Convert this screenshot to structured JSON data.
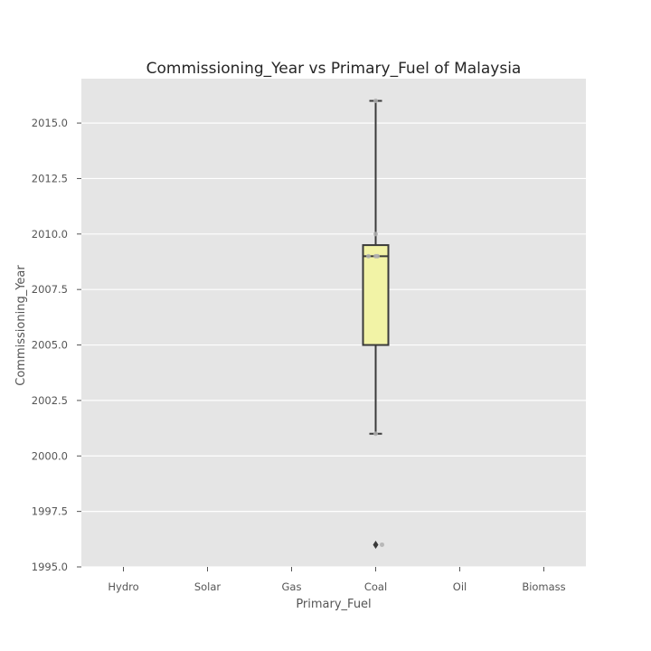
{
  "chart_data": {
    "type": "box",
    "title": "Commissioning_Year vs  Primary_Fuel of Malaysia",
    "xlabel": "Primary_Fuel",
    "ylabel": "Commissioning_Year",
    "categories": [
      "Hydro",
      "Solar",
      "Gas",
      "Coal",
      "Oil",
      "Biomass"
    ],
    "ylim": [
      1995.0,
      2017.0
    ],
    "yticks": [
      "1995.0",
      "1997.5",
      "2000.0",
      "2002.5",
      "2005.0",
      "2007.5",
      "2010.0",
      "2012.5",
      "2015.0"
    ],
    "grid": true,
    "boxes": [
      {
        "category": "Coal",
        "whisker_low": 2001,
        "q1": 2005,
        "median": 2009,
        "q3": 2009.5,
        "whisker_high": 2016,
        "outliers": [
          1996
        ],
        "points": [
          2016,
          2010,
          2009,
          2009,
          2009,
          2001,
          1996
        ]
      }
    ],
    "colors": {
      "plot_background": "#e5e5e5",
      "grid": "#ffffff",
      "box_fill": "#f2f3a6",
      "box_edge": "#3a3a3a",
      "points": "#b0b0b0"
    }
  }
}
